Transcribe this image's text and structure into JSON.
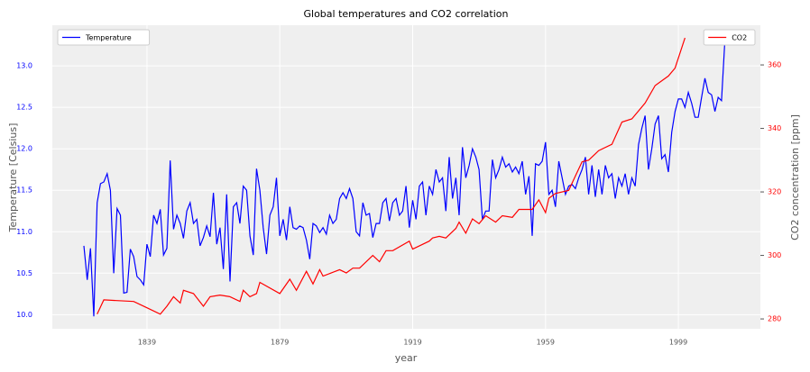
{
  "chart_data": {
    "type": "line",
    "title": "Global temperatures and CO2 correlation",
    "xlabel": "year",
    "ylabel": "Temperature [Celsius]",
    "y2label": "CO2 concentration [ppm]",
    "xlim": [
      1810.5,
      2023.7
    ],
    "xticks": [
      1839,
      1879,
      1919,
      1959,
      1999
    ],
    "ylim": [
      9.83,
      13.49
    ],
    "yticks": [
      {
        "value": 10,
        "label": "10.0"
      },
      10.5,
      {
        "value": 11,
        "label": "11.0"
      },
      11.5,
      {
        "value": 12,
        "label": "12.0"
      },
      12.5,
      {
        "value": 13,
        "label": "13.0"
      }
    ],
    "y2lim": [
      276.9,
      372.5
    ],
    "y2ticks": [
      280,
      300,
      320,
      340,
      360
    ],
    "grid": true,
    "series": [
      {
        "name": "Temperature",
        "color": "#0000ff",
        "legend_loc": "upper left",
        "x": [
          1820,
          1821,
          1822,
          1823,
          1824,
          1825,
          1826,
          1827,
          1828,
          1829,
          1830,
          1831,
          1832,
          1833,
          1834,
          1835,
          1836,
          1837,
          1838,
          1839,
          1840,
          1841,
          1842,
          1843,
          1844,
          1845,
          1846,
          1847,
          1848,
          1849,
          1850,
          1851,
          1852,
          1853,
          1854,
          1855,
          1856,
          1857,
          1858,
          1859,
          1860,
          1861,
          1862,
          1863,
          1864,
          1865,
          1866,
          1867,
          1868,
          1869,
          1870,
          1871,
          1872,
          1873,
          1874,
          1875,
          1876,
          1877,
          1878,
          1879,
          1880,
          1881,
          1882,
          1883,
          1884,
          1885,
          1886,
          1887,
          1888,
          1889,
          1890,
          1891,
          1892,
          1893,
          1894,
          1895,
          1896,
          1897,
          1898,
          1899,
          1900,
          1901,
          1902,
          1903,
          1904,
          1905,
          1906,
          1907,
          1908,
          1909,
          1910,
          1911,
          1912,
          1913,
          1914,
          1915,
          1916,
          1917,
          1918,
          1919,
          1920,
          1921,
          1922,
          1923,
          1924,
          1925,
          1926,
          1927,
          1928,
          1929,
          1930,
          1931,
          1932,
          1933,
          1934,
          1935,
          1936,
          1937,
          1938,
          1939,
          1940,
          1941,
          1942,
          1943,
          1944,
          1945,
          1946,
          1947,
          1948,
          1949,
          1950,
          1951,
          1952,
          1953,
          1954,
          1955,
          1956,
          1957,
          1958,
          1959,
          1960,
          1961,
          1962,
          1963,
          1964,
          1965,
          1966,
          1967,
          1968,
          1969,
          1970,
          1971,
          1972,
          1973,
          1974,
          1975,
          1976,
          1977,
          1978,
          1979,
          1980,
          1981,
          1982,
          1983,
          1984,
          1985,
          1986,
          1987,
          1988,
          1989,
          1990,
          1991,
          1992,
          1993,
          1994,
          1995,
          1996,
          1997,
          1998,
          1999,
          2000,
          2001,
          2002,
          2003,
          2004,
          2005,
          2006,
          2007,
          2008,
          2009,
          2010,
          2011,
          2012,
          2013
        ],
        "values": [
          10.83,
          10.42,
          10.8,
          9.98,
          11.35,
          11.58,
          11.6,
          11.7,
          11.5,
          10.5,
          11.28,
          11.2,
          10.26,
          10.27,
          10.79,
          10.7,
          10.46,
          10.42,
          10.36,
          10.85,
          10.7,
          11.2,
          11.1,
          11.27,
          10.72,
          10.8,
          11.86,
          11.03,
          11.2,
          11.1,
          10.92,
          11.25,
          11.35,
          11.1,
          11.15,
          10.83,
          10.93,
          11.07,
          10.94,
          11.47,
          10.85,
          11.05,
          10.55,
          11.45,
          10.4,
          11.3,
          11.35,
          11.1,
          11.55,
          11.5,
          10.95,
          10.72,
          11.76,
          11.5,
          11.05,
          10.73,
          11.2,
          11.3,
          11.65,
          10.95,
          11.15,
          10.9,
          11.3,
          11.05,
          11.03,
          11.07,
          11.05,
          10.9,
          10.67,
          11.1,
          11.07,
          10.99,
          11.05,
          10.97,
          11.2,
          11.1,
          11.15,
          11.4,
          11.47,
          11.4,
          11.52,
          11.4,
          11.0,
          10.95,
          11.35,
          11.2,
          11.22,
          10.93,
          11.1,
          11.1,
          11.35,
          11.4,
          11.13,
          11.35,
          11.4,
          11.2,
          11.25,
          11.55,
          11.05,
          11.38,
          11.15,
          11.55,
          11.6,
          11.2,
          11.55,
          11.45,
          11.75,
          11.6,
          11.65,
          11.25,
          11.9,
          11.4,
          11.65,
          11.2,
          12.02,
          11.65,
          11.8,
          12.0,
          11.9,
          11.75,
          11.15,
          11.25,
          11.25,
          11.87,
          11.65,
          11.75,
          11.9,
          11.78,
          11.82,
          11.72,
          11.78,
          11.7,
          11.85,
          11.45,
          11.67,
          10.95,
          11.82,
          11.8,
          11.85,
          12.08,
          11.45,
          11.5,
          11.3,
          11.85,
          11.65,
          11.45,
          11.55,
          11.57,
          11.52,
          11.65,
          11.75,
          11.9,
          11.45,
          11.8,
          11.42,
          11.75,
          11.45,
          11.8,
          11.65,
          11.7,
          11.4,
          11.65,
          11.55,
          11.7,
          11.45,
          11.65,
          11.55,
          12.05,
          12.25,
          12.4,
          11.75,
          12.0,
          12.3,
          12.4,
          11.88,
          11.93,
          11.72,
          12.2,
          12.45,
          12.6,
          12.6,
          12.5,
          12.68,
          12.55,
          12.38,
          12.38,
          12.62,
          12.85,
          12.68,
          12.65,
          12.45,
          12.62,
          12.58,
          13.3
        ]
      },
      {
        "name": "CO2",
        "color": "#ff0000",
        "axis": "y2",
        "legend_loc": "upper right",
        "x": [
          1824,
          1826,
          1835,
          1839,
          1843,
          1845,
          1847,
          1849,
          1850,
          1853,
          1856,
          1858,
          1861,
          1864,
          1867,
          1868,
          1870,
          1872,
          1873,
          1879,
          1882,
          1884,
          1887,
          1889,
          1891,
          1892,
          1897,
          1899,
          1901,
          1903,
          1907,
          1909,
          1911,
          1913,
          1918,
          1919,
          1924,
          1925,
          1927,
          1929,
          1932,
          1933,
          1935,
          1937,
          1939,
          1941,
          1944,
          1946,
          1949,
          1951,
          1955,
          1957,
          1959,
          1960,
          1962,
          1966,
          1968,
          1970,
          1972,
          1974,
          1975,
          1979,
          1982,
          1985,
          1989,
          1992,
          1996,
          1998,
          2001
        ],
        "values": [
          281.5,
          286,
          285.5,
          283.5,
          281.5,
          284,
          287,
          285,
          289,
          288,
          284,
          287,
          287.5,
          287,
          285.5,
          289,
          287,
          288,
          291.5,
          288,
          292.5,
          289,
          295,
          291,
          295.5,
          293.5,
          295.5,
          294.5,
          296,
          296,
          300,
          298,
          301.5,
          301.5,
          304.5,
          302,
          304.5,
          305.5,
          306,
          305.5,
          308.5,
          310.5,
          307,
          311.5,
          310,
          312.5,
          310.5,
          312.5,
          312,
          314.5,
          314.5,
          317.5,
          313.5,
          318,
          319.5,
          320.5,
          325,
          329.5,
          330,
          332,
          333,
          335,
          342,
          343,
          348,
          353.5,
          356.5,
          359,
          368.5
        ]
      }
    ]
  }
}
